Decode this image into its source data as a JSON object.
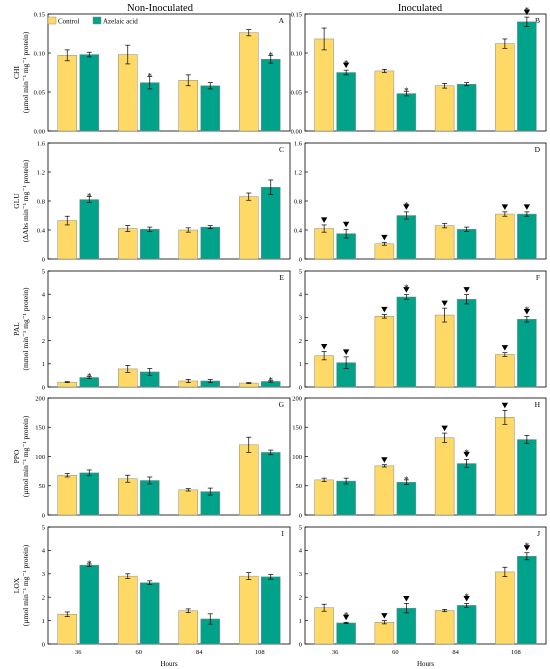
{
  "column_titles": [
    "Non-Inoculated",
    "Inoculated"
  ],
  "legend": {
    "items": [
      {
        "label": "Control",
        "color": "#FFD966"
      },
      {
        "label": "Azelaic acid",
        "color": "#00A28A"
      }
    ]
  },
  "colors": {
    "control": "#FFD966",
    "azelaic": "#00A28A",
    "bar_stroke": "#8a8a8a"
  },
  "chart_data": [
    {
      "type": "bar",
      "panel": "A",
      "ylabel": "CHI",
      "yunit": "(µmol min⁻¹ mg⁻¹ protein)",
      "ylim": [
        0,
        0.15
      ],
      "yticks": [
        "0.00",
        "0.05",
        "0.10",
        "0.15"
      ],
      "categories": [
        "36",
        "60",
        "84",
        "108"
      ],
      "xlabel": "",
      "series": [
        {
          "name": "Control",
          "values": [
            0.097,
            0.098,
            0.065,
            0.126
          ],
          "errors": [
            0.007,
            0.012,
            0.007,
            0.004
          ]
        },
        {
          "name": "Azelaic acid",
          "values": [
            0.098,
            0.062,
            0.058,
            0.092
          ],
          "errors": [
            0.003,
            0.008,
            0.004,
            0.005
          ]
        }
      ],
      "star": [
        [
          0,
          0
        ],
        [
          0,
          1
        ],
        [
          0,
          0
        ],
        [
          0,
          1
        ]
      ],
      "tri": [
        [
          0,
          0
        ],
        [
          0,
          0
        ],
        [
          0,
          0
        ],
        [
          0,
          0
        ]
      ]
    },
    {
      "type": "bar",
      "panel": "B",
      "ylabel": "",
      "yunit": "",
      "ylim": [
        0,
        0.15
      ],
      "yticks": [
        "0.00",
        "0.05",
        "0.10",
        "0.15"
      ],
      "categories": [
        "36",
        "60",
        "84",
        "108"
      ],
      "xlabel": "",
      "series": [
        {
          "name": "Control",
          "values": [
            0.118,
            0.077,
            0.058,
            0.112
          ],
          "errors": [
            0.014,
            0.002,
            0.003,
            0.006
          ]
        },
        {
          "name": "Azelaic acid",
          "values": [
            0.075,
            0.048,
            0.06,
            0.14
          ],
          "errors": [
            0.003,
            0.003,
            0.002,
            0.006
          ]
        }
      ],
      "star": [
        [
          0,
          1
        ],
        [
          0,
          1
        ],
        [
          0,
          0
        ],
        [
          0,
          1
        ]
      ],
      "tri": [
        [
          0,
          1
        ],
        [
          0,
          0
        ],
        [
          0,
          0
        ],
        [
          0,
          1
        ]
      ]
    },
    {
      "type": "bar",
      "panel": "C",
      "ylabel": "GLU",
      "yunit": "(ΔAbs min⁻¹ mg⁻¹ protein)",
      "ylim": [
        0,
        1.6
      ],
      "yticks": [
        "0",
        "0.4",
        "0.8",
        "1.2",
        "1.6"
      ],
      "categories": [
        "36",
        "60",
        "84",
        "108"
      ],
      "xlabel": "",
      "series": [
        {
          "name": "Control",
          "values": [
            0.53,
            0.42,
            0.4,
            0.86
          ],
          "errors": [
            0.06,
            0.04,
            0.03,
            0.05
          ]
        },
        {
          "name": "Azelaic acid",
          "values": [
            0.82,
            0.41,
            0.44,
            0.99
          ],
          "errors": [
            0.04,
            0.03,
            0.02,
            0.1
          ]
        }
      ],
      "star": [
        [
          0,
          1
        ],
        [
          0,
          0
        ],
        [
          0,
          0
        ],
        [
          0,
          0
        ]
      ],
      "tri": [
        [
          0,
          0
        ],
        [
          0,
          0
        ],
        [
          0,
          0
        ],
        [
          0,
          0
        ]
      ]
    },
    {
      "type": "bar",
      "panel": "D",
      "ylabel": "",
      "yunit": "",
      "ylim": [
        0,
        1.6
      ],
      "yticks": [
        "0",
        "0.4",
        "0.8",
        "1.2",
        "1.6"
      ],
      "categories": [
        "36",
        "60",
        "84",
        "108"
      ],
      "xlabel": "",
      "series": [
        {
          "name": "Control",
          "values": [
            0.42,
            0.21,
            0.46,
            0.62
          ],
          "errors": [
            0.05,
            0.02,
            0.03,
            0.03
          ]
        },
        {
          "name": "Azelaic acid",
          "values": [
            0.35,
            0.6,
            0.41,
            0.62
          ],
          "errors": [
            0.06,
            0.05,
            0.03,
            0.03
          ]
        }
      ],
      "star": [
        [
          0,
          0
        ],
        [
          0,
          1
        ],
        [
          0,
          0
        ],
        [
          0,
          0
        ]
      ],
      "tri": [
        [
          1,
          1
        ],
        [
          1,
          1
        ],
        [
          0,
          0
        ],
        [
          1,
          1
        ]
      ]
    },
    {
      "type": "bar",
      "panel": "E",
      "ylabel": "PAL",
      "yunit": "(mmol min⁻¹ mg⁻¹ protein)",
      "ylim": [
        0,
        5
      ],
      "yticks": [
        "0",
        "1",
        "2",
        "3",
        "4",
        "5"
      ],
      "categories": [
        "36",
        "60",
        "84",
        "108"
      ],
      "xlabel": "",
      "series": [
        {
          "name": "Control",
          "values": [
            0.21,
            0.78,
            0.26,
            0.17
          ],
          "errors": [
            0.02,
            0.15,
            0.07,
            0.02
          ]
        },
        {
          "name": "Azelaic acid",
          "values": [
            0.41,
            0.65,
            0.26,
            0.24
          ],
          "errors": [
            0.05,
            0.15,
            0.07,
            0.03
          ]
        }
      ],
      "star": [
        [
          0,
          1
        ],
        [
          0,
          0
        ],
        [
          0,
          0
        ],
        [
          0,
          1
        ]
      ],
      "tri": [
        [
          0,
          0
        ],
        [
          0,
          0
        ],
        [
          0,
          0
        ],
        [
          0,
          0
        ]
      ]
    },
    {
      "type": "bar",
      "panel": "F",
      "ylabel": "",
      "yunit": "",
      "ylim": [
        0,
        5
      ],
      "yticks": [
        "0",
        "1",
        "2",
        "3",
        "4",
        "5"
      ],
      "categories": [
        "36",
        "60",
        "84",
        "108"
      ],
      "xlabel": "",
      "series": [
        {
          "name": "Control",
          "values": [
            1.35,
            3.05,
            3.1,
            1.4
          ],
          "errors": [
            0.18,
            0.08,
            0.3,
            0.08
          ]
        },
        {
          "name": "Azelaic acid",
          "values": [
            1.05,
            3.88,
            3.78,
            2.92
          ],
          "errors": [
            0.25,
            0.1,
            0.2,
            0.12
          ]
        }
      ],
      "star": [
        [
          0,
          0
        ],
        [
          0,
          1
        ],
        [
          0,
          0
        ],
        [
          0,
          1
        ]
      ],
      "tri": [
        [
          1,
          1
        ],
        [
          1,
          1
        ],
        [
          1,
          1
        ],
        [
          1,
          1
        ]
      ]
    },
    {
      "type": "bar",
      "panel": "G",
      "ylabel": "PPO",
      "yunit": "(µmol min⁻¹ mg⁻¹ protein)",
      "ylim": [
        0,
        200
      ],
      "yticks": [
        "0",
        "50",
        "100",
        "150",
        "200"
      ],
      "categories": [
        "36",
        "60",
        "84",
        "108"
      ],
      "xlabel": "",
      "series": [
        {
          "name": "Control",
          "values": [
            68,
            62,
            43,
            120
          ],
          "errors": [
            3,
            6,
            2,
            13
          ]
        },
        {
          "name": "Azelaic acid",
          "values": [
            72,
            59,
            40,
            107
          ],
          "errors": [
            5,
            6,
            6,
            4
          ]
        }
      ],
      "star": [
        [
          0,
          0
        ],
        [
          0,
          0
        ],
        [
          0,
          0
        ],
        [
          0,
          0
        ]
      ],
      "tri": [
        [
          0,
          0
        ],
        [
          0,
          0
        ],
        [
          0,
          0
        ],
        [
          0,
          0
        ]
      ]
    },
    {
      "type": "bar",
      "panel": "H",
      "ylabel": "",
      "yunit": "",
      "ylim": [
        0,
        200
      ],
      "yticks": [
        "0",
        "50",
        "100",
        "150",
        "200"
      ],
      "categories": [
        "36",
        "60",
        "84",
        "108"
      ],
      "xlabel": "",
      "series": [
        {
          "name": "Control",
          "values": [
            60,
            84,
            132,
            167
          ],
          "errors": [
            3,
            2,
            8,
            12
          ]
        },
        {
          "name": "Azelaic acid",
          "values": [
            58,
            56,
            88,
            129
          ],
          "errors": [
            5,
            4,
            7,
            7
          ]
        }
      ],
      "star": [
        [
          0,
          0
        ],
        [
          0,
          1
        ],
        [
          0,
          1
        ],
        [
          0,
          0
        ]
      ],
      "tri": [
        [
          0,
          0
        ],
        [
          1,
          0
        ],
        [
          1,
          1
        ],
        [
          1,
          0
        ]
      ]
    },
    {
      "type": "bar",
      "panel": "I",
      "ylabel": "LOX",
      "yunit": "(µmol min⁻¹ mg⁻¹ protein)",
      "ylim": [
        0,
        5
      ],
      "yticks": [
        "0",
        "1",
        "2",
        "3",
        "4",
        "5"
      ],
      "categories": [
        "36",
        "60",
        "84",
        "108"
      ],
      "xlabel": "Hours",
      "series": [
        {
          "name": "Control",
          "values": [
            1.27,
            2.9,
            1.42,
            2.9
          ],
          "errors": [
            0.1,
            0.1,
            0.08,
            0.15
          ]
        },
        {
          "name": "Azelaic acid",
          "values": [
            3.37,
            2.62,
            1.07,
            2.87
          ],
          "errors": [
            0.05,
            0.08,
            0.22,
            0.1
          ]
        }
      ],
      "star": [
        [
          0,
          1
        ],
        [
          0,
          0
        ],
        [
          0,
          0
        ],
        [
          0,
          0
        ]
      ],
      "tri": [
        [
          0,
          0
        ],
        [
          0,
          0
        ],
        [
          0,
          0
        ],
        [
          0,
          0
        ]
      ]
    },
    {
      "type": "bar",
      "panel": "J",
      "ylabel": "",
      "yunit": "",
      "ylim": [
        0,
        5
      ],
      "yticks": [
        "0",
        "1",
        "2",
        "3",
        "4",
        "5"
      ],
      "categories": [
        "36",
        "60",
        "84",
        "108"
      ],
      "xlabel": "Hours",
      "series": [
        {
          "name": "Control",
          "values": [
            1.55,
            0.93,
            1.43,
            3.08
          ],
          "errors": [
            0.15,
            0.07,
            0.05,
            0.2
          ]
        },
        {
          "name": "Azelaic acid",
          "values": [
            0.9,
            1.53,
            1.65,
            3.75
          ],
          "errors": [
            0.03,
            0.2,
            0.08,
            0.15
          ]
        }
      ],
      "star": [
        [
          0,
          1
        ],
        [
          0,
          0
        ],
        [
          0,
          1
        ],
        [
          0,
          1
        ]
      ],
      "tri": [
        [
          0,
          1
        ],
        [
          1,
          1
        ],
        [
          0,
          1
        ],
        [
          0,
          1
        ]
      ]
    }
  ]
}
